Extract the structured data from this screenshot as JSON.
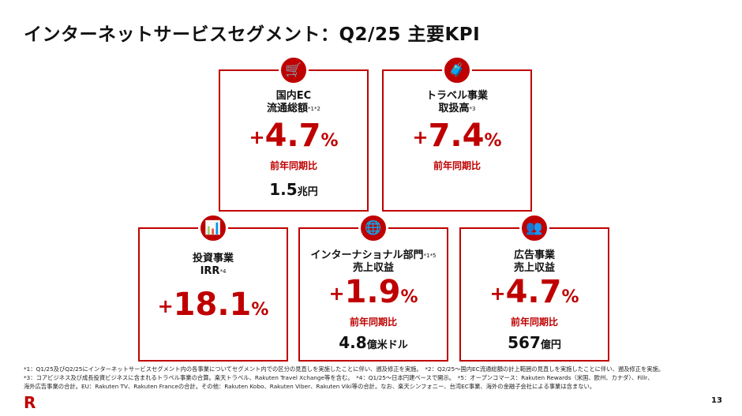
{
  "title": "インターネットサービスセグメント：Q2/25 主要KPI",
  "kpis": [
    {
      "label1": "国内EC",
      "label2": "流通総額",
      "note": "*1*2",
      "plus": "+",
      "value": "4.7",
      "pct": "%",
      "yoy": "前年同期比",
      "amount": "1.5",
      "unit": "兆円",
      "icon": "shopping-cart-icon",
      "glyph": "🛒"
    },
    {
      "label1": "トラベル事業",
      "label2": "取扱高",
      "note": "*3",
      "plus": "+",
      "value": "7.4",
      "pct": "%",
      "yoy": "前年同期比",
      "icon": "suitcase-icon",
      "glyph": "🧳"
    },
    {
      "label1": "投資事業",
      "label2": "IRR",
      "note": "*4",
      "plus": "+",
      "value": "18.1",
      "pct": "%",
      "icon": "bar-chart-icon",
      "glyph": "📊"
    },
    {
      "label1": "インターナショナル部門",
      "note": "*1*5",
      "label2": "売上収益",
      "plus": "+",
      "value": "1.9",
      "pct": "%",
      "yoy": "前年同期比",
      "amount": "4.8",
      "unit": "億米ドル",
      "icon": "globe-icon",
      "glyph": "🌐"
    },
    {
      "label1": "広告事業",
      "label2": "売上収益",
      "note": "",
      "plus": "+",
      "value": "4.7",
      "pct": "%",
      "yoy": "前年同期比",
      "amount": "567",
      "unit": "億円",
      "icon": "audience-icon",
      "glyph": "👥"
    }
  ],
  "footnotes": [
    "*1：Q1/25及びQ2/25にインターネットサービスセグメント内の各事業についてセグメント内での区分の見直しを実施したことに伴い、遡及修正を実施。　*2：Q2/25～国内EC流通総額の計上範囲の見直しを実施したことに伴い、遡及修正を実施。",
    "*3：コアビジネス及び成長投資ビジネスに含まれるトラベル事業の合算。楽天トラベル、Rakuten Travel Xchange等を含む。　*4：Q1/25～日本円建ベースで開示。　*5：オープンコマース：Rakuten Rewards（米国、欧州、カナダ）、Fillr、",
    "海外広告事業の合計。EU：Rakuten TV、Rakuten Franceの合計。その他：Rakuten Kobo、Rakuten Viber、Rakuten Viki等の合計。なお、楽天シンフォニー、台湾EC事業、海外の金融子会社による事業は含まない。"
  ],
  "logo": "R",
  "page_number": "13"
}
